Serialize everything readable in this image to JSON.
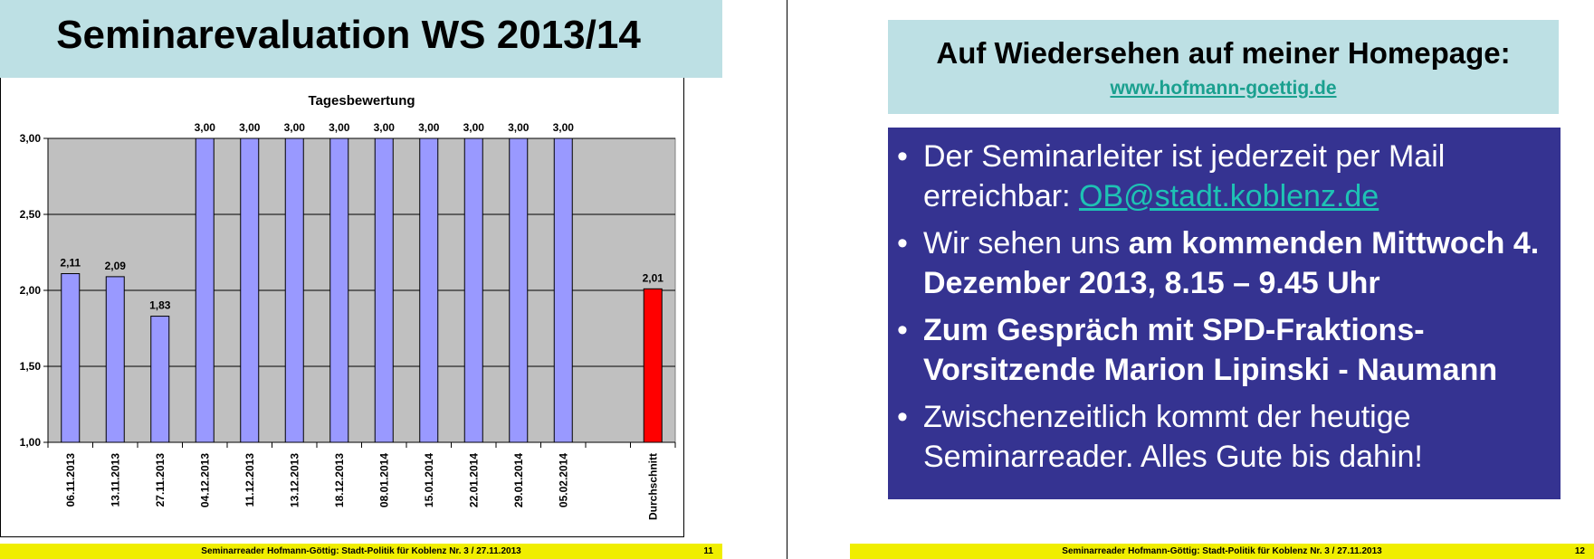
{
  "left_slide": {
    "title": "Seminarevaluation WS 2013/14",
    "footer_text": "Seminarreader Hofmann-Göttig: Stadt-Politik für Koblenz Nr. 3 / 27.11.2013",
    "page_number": "11"
  },
  "chart_data": {
    "type": "bar",
    "title": "Tagesbewertung",
    "categories": [
      "06.11.2013",
      "13.11.2013",
      "27.11.2013",
      "04.12.2013",
      "11.12.2013",
      "13.12.2013",
      "18.12.2013",
      "08.01.2014",
      "15.01.2014",
      "22.01.2014",
      "29.01.2014",
      "05.02.2014",
      "",
      "Durchschnitt"
    ],
    "values": [
      2.11,
      2.09,
      1.83,
      3.0,
      3.0,
      3.0,
      3.0,
      3.0,
      3.0,
      3.0,
      3.0,
      3.0,
      null,
      2.01
    ],
    "value_labels": [
      "2,11",
      "2,09",
      "1,83",
      "3,00",
      "3,00",
      "3,00",
      "3,00",
      "3,00",
      "3,00",
      "3,00",
      "3,00",
      "3,00",
      "",
      "2,01"
    ],
    "ylim": [
      1.0,
      3.0
    ],
    "yticks": [
      1.0,
      1.5,
      2.0,
      2.5,
      3.0
    ],
    "ytick_labels": [
      "1,00",
      "1,50",
      "2,00",
      "2,50",
      "3,00"
    ],
    "grid": true,
    "colors": {
      "bar": "#9999ff",
      "highlight": "#ff0000",
      "plot_background": "#c0c0c0"
    }
  },
  "right_slide": {
    "title": "Auf Wiedersehen auf meiner Homepage:",
    "link": "www.hofmann-goettig.de",
    "bullets": {
      "b1_line1": "Der Seminarleiter ist jederzeit per Mail",
      "b1_prefix": "erreichbar: ",
      "b1_email": "OB@stadt.koblenz.de",
      "b2_normal": "Wir sehen uns ",
      "b2_bold": "am kommenden Mittwoch 4. Dezember 2013, 8.15 – 9.45 Uhr",
      "b3_bold": "Zum Gespräch mit SPD-Fraktions-Vorsitzende Marion Lipinski - Naumann",
      "b4": "Zwischenzeitlich kommt der heutige Seminarreader. Alles Gute bis dahin!"
    },
    "footer_text": "Seminarreader Hofmann-Göttig: Stadt-Politik für Koblenz Nr. 3 / 27.11.2013",
    "page_number": "12"
  }
}
